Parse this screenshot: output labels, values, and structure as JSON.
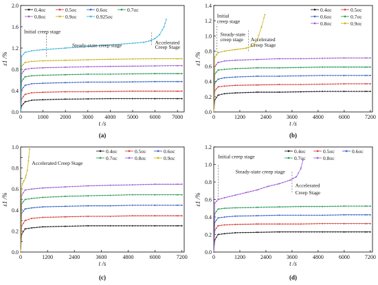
{
  "figure": {
    "background": "#ffffff",
    "series_palette": {
      "0.4": "#222222",
      "0.5": "#d9413a",
      "0.6": "#3a67c8",
      "0.7": "#2c9c5a",
      "0.8": "#9b5fd6",
      "0.9": "#c9b21a",
      "0.925": "#3fb6d8"
    }
  },
  "chart_data": [
    {
      "type": "line",
      "panel_label": "(a)",
      "xlabel": "t /s",
      "ylabel": "ε1 /%",
      "xlim": [
        0,
        7300
      ],
      "ylim": [
        0,
        2.0
      ],
      "xticks": [
        0,
        1000,
        2000,
        3000,
        4000,
        5000,
        6000,
        7000
      ],
      "yticks": [
        0.0,
        0.4,
        0.8,
        1.2,
        1.6,
        2.0
      ],
      "ytick_labels": [
        "0.0",
        "0.4",
        "0.8",
        "1.2",
        "1.6",
        "2.0"
      ],
      "legend_position": "top-left",
      "legend_columns": 4,
      "series": [
        {
          "name": "0.4σc",
          "color": "#222222",
          "x": [
            0,
            50,
            200,
            500,
            1000,
            2000,
            3000,
            4000,
            5000,
            6000,
            7000,
            7200
          ],
          "y": [
            0,
            0.12,
            0.19,
            0.22,
            0.23,
            0.24,
            0.245,
            0.25,
            0.25,
            0.25,
            0.25,
            0.25
          ]
        },
        {
          "name": "0.5σc",
          "color": "#d9413a",
          "x": [
            0,
            50,
            200,
            500,
            1000,
            2000,
            3000,
            4000,
            5000,
            6000,
            7000,
            7200
          ],
          "y": [
            0,
            0.25,
            0.33,
            0.36,
            0.37,
            0.38,
            0.38,
            0.385,
            0.39,
            0.39,
            0.39,
            0.39
          ]
        },
        {
          "name": "0.6σc",
          "color": "#3a67c8",
          "x": [
            0,
            50,
            200,
            500,
            1000,
            2000,
            3000,
            4000,
            5000,
            6000,
            7000,
            7200
          ],
          "y": [
            0,
            0.42,
            0.5,
            0.53,
            0.54,
            0.55,
            0.56,
            0.56,
            0.565,
            0.57,
            0.57,
            0.57
          ]
        },
        {
          "name": "0.7σc",
          "color": "#2c9c5a",
          "x": [
            0,
            50,
            200,
            500,
            1000,
            2000,
            3000,
            4000,
            5000,
            6000,
            7000,
            7200
          ],
          "y": [
            0,
            0.58,
            0.66,
            0.68,
            0.69,
            0.7,
            0.71,
            0.71,
            0.715,
            0.72,
            0.72,
            0.72
          ]
        },
        {
          "name": "0.8σc",
          "color": "#9b5fd6",
          "x": [
            0,
            50,
            200,
            500,
            1000,
            2000,
            3000,
            4000,
            5000,
            6000,
            7000,
            7200
          ],
          "y": [
            0,
            0.72,
            0.8,
            0.82,
            0.83,
            0.84,
            0.85,
            0.855,
            0.86,
            0.865,
            0.87,
            0.87
          ]
        },
        {
          "name": "0.9σc",
          "color": "#c9b21a",
          "x": [
            0,
            50,
            200,
            500,
            1000,
            2000,
            3000,
            4000,
            5000,
            6000,
            7000,
            7200
          ],
          "y": [
            0,
            0.86,
            0.93,
            0.95,
            0.96,
            0.97,
            0.98,
            0.99,
            0.995,
            1.0,
            1.0,
            1.0
          ]
        },
        {
          "name": "0.925σc",
          "color": "#3fb6d8",
          "x": [
            0,
            50,
            200,
            500,
            1000,
            2000,
            3000,
            4000,
            5000,
            5500,
            5800,
            6000,
            6200,
            6400,
            6500
          ],
          "y": [
            0,
            1.05,
            1.12,
            1.15,
            1.17,
            1.2,
            1.23,
            1.26,
            1.29,
            1.31,
            1.34,
            1.38,
            1.45,
            1.6,
            1.74
          ]
        }
      ],
      "annotations": [
        {
          "text": "Initial creep stage",
          "x": 150,
          "y": 1.48
        },
        {
          "text": "Steady-state creep stage",
          "x": 2300,
          "y": 1.22
        },
        {
          "text": "Accelerated",
          "x": 6000,
          "y": 1.27
        },
        {
          "text": "Creep Stage",
          "x": 6000,
          "y": 1.19
        }
      ],
      "dividers": [
        {
          "x": 1150,
          "y_from": 1.04,
          "y_to": 1.5
        },
        {
          "x": 5850,
          "y_from": 1.26,
          "y_to": 1.52
        }
      ]
    },
    {
      "type": "line",
      "panel_label": "(b)",
      "xlabel": "t /s",
      "ylabel": "ε1 /%",
      "xlim": [
        0,
        7300
      ],
      "ylim": [
        0,
        1.4
      ],
      "xticks": [
        0,
        1200,
        2400,
        3600,
        4800,
        6000,
        7200
      ],
      "yticks": [
        0.0,
        0.2,
        0.4,
        0.6,
        0.8,
        1.0,
        1.2,
        1.4
      ],
      "ytick_labels": [
        "0.0",
        "0.2",
        "0.4",
        "0.6",
        "0.8",
        "1.0",
        "1.2",
        "1.4"
      ],
      "legend_position": "top-right",
      "legend_columns": 2,
      "series": [
        {
          "name": "0.4σc",
          "color": "#222222",
          "x": [
            0,
            50,
            200,
            500,
            1000,
            2000,
            3000,
            4000,
            5000,
            6000,
            7000,
            7200
          ],
          "y": [
            0,
            0.16,
            0.22,
            0.24,
            0.25,
            0.26,
            0.26,
            0.265,
            0.27,
            0.27,
            0.27,
            0.27
          ]
        },
        {
          "name": "0.5σc",
          "color": "#d9413a",
          "x": [
            0,
            50,
            200,
            500,
            1000,
            2000,
            3000,
            4000,
            5000,
            6000,
            7000,
            7200
          ],
          "y": [
            0,
            0.28,
            0.33,
            0.34,
            0.35,
            0.355,
            0.36,
            0.36,
            0.365,
            0.37,
            0.37,
            0.37
          ]
        },
        {
          "name": "0.6σc",
          "color": "#3a67c8",
          "x": [
            0,
            50,
            200,
            500,
            1000,
            2000,
            3000,
            4000,
            5000,
            6000,
            7000,
            7200
          ],
          "y": [
            0,
            0.38,
            0.43,
            0.45,
            0.46,
            0.47,
            0.47,
            0.475,
            0.48,
            0.48,
            0.48,
            0.48
          ]
        },
        {
          "name": "0.7σc",
          "color": "#2c9c5a",
          "x": [
            0,
            50,
            200,
            500,
            1000,
            2000,
            3000,
            4000,
            5000,
            6000,
            7000,
            7200
          ],
          "y": [
            0,
            0.5,
            0.55,
            0.56,
            0.57,
            0.58,
            0.58,
            0.585,
            0.59,
            0.59,
            0.59,
            0.59
          ]
        },
        {
          "name": "0.8σc",
          "color": "#9b5fd6",
          "x": [
            0,
            50,
            200,
            500,
            1000,
            2000,
            3000,
            4000,
            5000,
            6000,
            7000,
            7200
          ],
          "y": [
            0,
            0.6,
            0.65,
            0.67,
            0.68,
            0.69,
            0.7,
            0.7,
            0.705,
            0.71,
            0.71,
            0.71
          ]
        },
        {
          "name": "0.9σc",
          "color": "#c9b21a",
          "x": [
            0,
            50,
            200,
            500,
            1000,
            1500,
            1800,
            2000,
            2200,
            2350
          ],
          "y": [
            0,
            0.72,
            0.78,
            0.8,
            0.82,
            0.84,
            0.87,
            0.95,
            1.12,
            1.28
          ]
        }
      ],
      "annotations": [
        {
          "text": "Initial",
          "x": 150,
          "y": 1.24
        },
        {
          "text": "creep stage",
          "x": 150,
          "y": 1.17
        },
        {
          "text": "Steady-state",
          "x": 300,
          "y": 1.0
        },
        {
          "text": "creep stage",
          "x": 300,
          "y": 0.93
        },
        {
          "text": "Accelerated",
          "x": 1700,
          "y": 0.93
        },
        {
          "text": "Creep Stage",
          "x": 1700,
          "y": 0.86
        }
      ],
      "dividers": [
        {
          "x": 150,
          "y_from": 0.75,
          "y_to": 1.15
        },
        {
          "x": 1600,
          "y_from": 0.8,
          "y_to": 1.08
        }
      ]
    },
    {
      "type": "line",
      "panel_label": "(c)",
      "xlabel": "t /s",
      "ylabel": "ε1 /%",
      "xlim": [
        0,
        7300
      ],
      "ylim": [
        0,
        1.0
      ],
      "xticks": [
        0,
        1200,
        2400,
        3600,
        4800,
        6000,
        7200
      ],
      "yticks": [
        0.0,
        0.1,
        0.2,
        0.3,
        0.4,
        0.5,
        0.6,
        0.7,
        0.8,
        0.9,
        1.0
      ],
      "ytick_labels": [
        "0.0",
        "",
        "0.2",
        "",
        "0.4",
        "",
        "0.6",
        "",
        "0.8",
        "",
        "1.0"
      ],
      "legend_position": "top-right",
      "legend_columns": 3,
      "series": [
        {
          "name": "0.4σc",
          "color": "#222222",
          "x": [
            0,
            50,
            200,
            500,
            1000,
            2000,
            3000,
            4000,
            5000,
            6000,
            7000,
            7200
          ],
          "y": [
            0,
            0.17,
            0.22,
            0.23,
            0.24,
            0.245,
            0.25,
            0.25,
            0.25,
            0.25,
            0.25,
            0.25
          ]
        },
        {
          "name": "0.5σc",
          "color": "#d9413a",
          "x": [
            0,
            50,
            200,
            500,
            1000,
            2000,
            3000,
            4000,
            5000,
            6000,
            7000,
            7200
          ],
          "y": [
            0,
            0.25,
            0.3,
            0.32,
            0.33,
            0.335,
            0.34,
            0.34,
            0.345,
            0.345,
            0.345,
            0.345
          ]
        },
        {
          "name": "0.6σc",
          "color": "#3a67c8",
          "x": [
            0,
            50,
            200,
            500,
            1000,
            2000,
            3000,
            4000,
            5000,
            6000,
            7000,
            7200
          ],
          "y": [
            0,
            0.37,
            0.41,
            0.42,
            0.43,
            0.435,
            0.44,
            0.44,
            0.445,
            0.445,
            0.445,
            0.445
          ]
        },
        {
          "name": "0.7σc",
          "color": "#2c9c5a",
          "x": [
            0,
            50,
            200,
            500,
            1000,
            2000,
            3000,
            4000,
            5000,
            6000,
            7000,
            7200
          ],
          "y": [
            0,
            0.46,
            0.5,
            0.51,
            0.52,
            0.53,
            0.535,
            0.54,
            0.545,
            0.545,
            0.545,
            0.545
          ]
        },
        {
          "name": "0.8σc",
          "color": "#9b5fd6",
          "x": [
            0,
            50,
            200,
            500,
            1000,
            2000,
            3000,
            4000,
            5000,
            6000,
            7000,
            7200
          ],
          "y": [
            0,
            0.54,
            0.59,
            0.6,
            0.61,
            0.62,
            0.63,
            0.635,
            0.64,
            0.645,
            0.645,
            0.645
          ]
        },
        {
          "name": "0.9σc",
          "color": "#c9b21a",
          "x": [
            0,
            40,
            80,
            150,
            220,
            300,
            350,
            400
          ],
          "y": [
            0,
            0.6,
            0.65,
            0.68,
            0.71,
            0.78,
            0.87,
            0.98
          ]
        }
      ],
      "annotations": [
        {
          "text": "Accelerated Creep Stage",
          "x": 500,
          "y": 0.83
        }
      ],
      "dividers": []
    },
    {
      "type": "line",
      "panel_label": "(d)",
      "xlabel": "t /s",
      "ylabel": "ε1 /%",
      "xlim": [
        0,
        7300
      ],
      "ylim": [
        0,
        1.2
      ],
      "xticks": [
        0,
        1200,
        2400,
        3600,
        4800,
        6000,
        7200
      ],
      "yticks": [
        0.0,
        0.2,
        0.4,
        0.6,
        0.8,
        1.0,
        1.2
      ],
      "ytick_labels": [
        "0.0",
        "0.2",
        "0.4",
        "0.6",
        "0.8",
        "1.0",
        "1.2"
      ],
      "legend_position": "top-right",
      "legend_columns": 3,
      "series": [
        {
          "name": "0.4σc",
          "color": "#222222",
          "x": [
            0,
            50,
            200,
            500,
            1000,
            2000,
            3000,
            4000,
            5000,
            6000,
            7000,
            7200
          ],
          "y": [
            0,
            0.14,
            0.2,
            0.21,
            0.22,
            0.225,
            0.23,
            0.23,
            0.23,
            0.23,
            0.23,
            0.23
          ]
        },
        {
          "name": "0.5σc",
          "color": "#d9413a",
          "x": [
            0,
            50,
            200,
            500,
            1000,
            2000,
            3000,
            4000,
            5000,
            6000,
            7000,
            7200
          ],
          "y": [
            0,
            0.25,
            0.3,
            0.31,
            0.315,
            0.32,
            0.32,
            0.32,
            0.325,
            0.325,
            0.325,
            0.325
          ]
        },
        {
          "name": "0.6σc",
          "color": "#3a67c8",
          "x": [
            0,
            50,
            200,
            500,
            1000,
            2000,
            3000,
            4000,
            5000,
            6000,
            7000,
            7200
          ],
          "y": [
            0,
            0.34,
            0.39,
            0.4,
            0.41,
            0.415,
            0.42,
            0.42,
            0.42,
            0.425,
            0.425,
            0.425
          ]
        },
        {
          "name": "0.7σc",
          "color": "#2c9c5a",
          "x": [
            0,
            50,
            200,
            500,
            1000,
            2000,
            3000,
            4000,
            5000,
            6000,
            7000,
            7200
          ],
          "y": [
            0,
            0.44,
            0.49,
            0.5,
            0.505,
            0.51,
            0.515,
            0.52,
            0.52,
            0.525,
            0.525,
            0.525
          ]
        },
        {
          "name": "0.8σc",
          "color": "#9b5fd6",
          "x": [
            0,
            50,
            200,
            500,
            1000,
            1500,
            2000,
            2500,
            3000,
            3500,
            3800,
            4000,
            4100
          ],
          "y": [
            0,
            0.56,
            0.6,
            0.62,
            0.65,
            0.68,
            0.71,
            0.75,
            0.78,
            0.82,
            0.86,
            0.95,
            1.05
          ]
        }
      ],
      "annotations": [
        {
          "text": "Initial creep stage",
          "x": 200,
          "y": 1.07
        },
        {
          "text": "Steady-state creep stage",
          "x": 1000,
          "y": 0.9
        },
        {
          "text": "Accelerated",
          "x": 3750,
          "y": 0.74
        },
        {
          "text": "Creep Stage",
          "x": 3750,
          "y": 0.66
        }
      ],
      "dividers": [
        {
          "x": 200,
          "y_from": 0.6,
          "y_to": 1.0
        },
        {
          "x": 3600,
          "y_from": 0.68,
          "y_to": 0.92
        }
      ]
    }
  ]
}
